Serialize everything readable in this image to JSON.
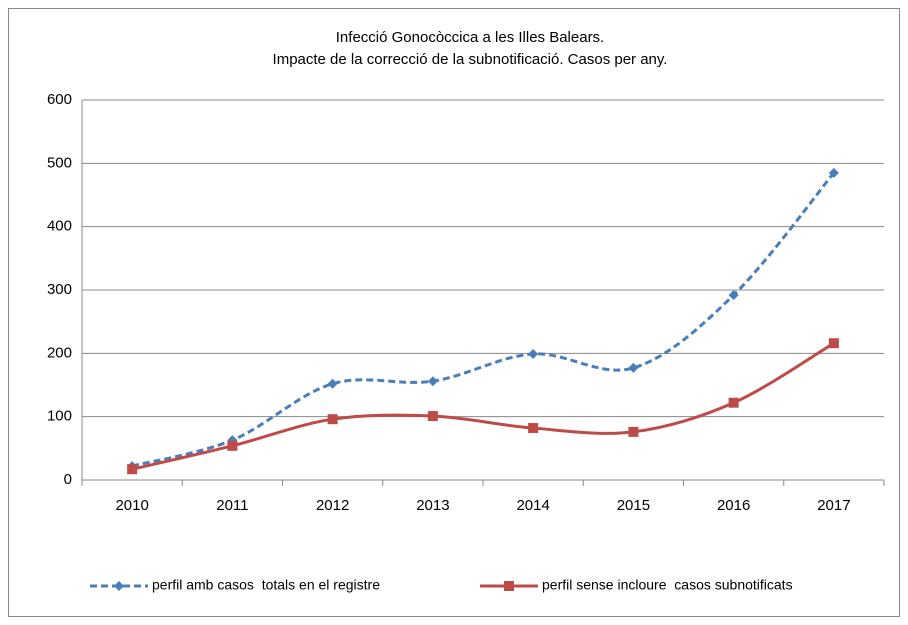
{
  "chart_data": {
    "type": "line",
    "title": "Infecció Gonocòccica a les Illes Balears.",
    "subtitle": "Impacte de la correcció de la subnotificació. Casos per any.",
    "categories": [
      "2010",
      "2011",
      "2012",
      "2013",
      "2014",
      "2015",
      "2016",
      "2017"
    ],
    "series": [
      {
        "name": "perfil amb casos  totals en el registre",
        "color": "#4a7ebb",
        "marker": "diamond",
        "dash": true,
        "values": [
          22,
          63,
          152,
          156,
          199,
          177,
          292,
          485
        ]
      },
      {
        "name": "perfil sense incloure  casos subnotificats",
        "color": "#be4b48",
        "marker": "square",
        "dash": false,
        "values": [
          17,
          54,
          96,
          101,
          82,
          76,
          122,
          216
        ]
      }
    ],
    "ylim": [
      0,
      600
    ],
    "yticks": [
      0,
      100,
      200,
      300,
      400,
      500,
      600
    ],
    "grid": true,
    "smooth": true,
    "legend": "bottom"
  }
}
